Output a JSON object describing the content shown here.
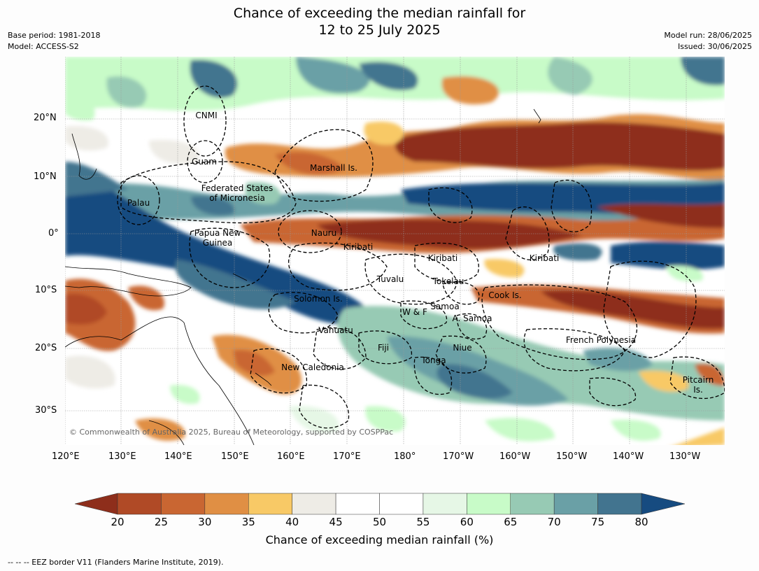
{
  "title": {
    "line1": "Chance of exceeding the median rainfall for",
    "line2": "12 to 25 July 2025"
  },
  "meta": {
    "base_period": "Base period: 1981-2018",
    "model": "Model: ACCESS-S2",
    "model_run": "Model run: 28/06/2025",
    "issued": "Issued: 30/06/2025"
  },
  "axes": {
    "lon_labels": [
      "120°E",
      "130°E",
      "140°E",
      "150°E",
      "160°E",
      "170°E",
      "180°",
      "170°W",
      "160°W",
      "150°W",
      "140°W",
      "130°W"
    ],
    "lat_labels": [
      "20°N",
      "10°N",
      "0°",
      "10°S",
      "20°S",
      "30°S"
    ]
  },
  "regions": {
    "cnmi": "CNMI",
    "guam": "Guam",
    "marshall": "Marshall Is.",
    "fsm1": "Federated States",
    "fsm2": "of Micronesia",
    "palau": "Palau",
    "png1": "Papua New",
    "png2": "Guinea",
    "nauru": "Nauru",
    "kiribati_w": "Kiribati",
    "kiribati_c": "Kiribati",
    "kiribati_e": "Kiribati",
    "tuvalu": "Tuvalu",
    "tokelau": "Tokelau",
    "cook": "Cook Is.",
    "solomon": "Solomon Is.",
    "wf": "W & F",
    "samoa": "Samoa",
    "asamoa": "A. Samoa",
    "vanuatu": "Vanuatu",
    "fiji": "Fiji",
    "niue": "Niue",
    "tonga": "Tonga",
    "frenchpoly": "French Polynesia",
    "newcal": "New Caledonia",
    "pitcairn1": "Pitcairn",
    "pitcairn2": "Is."
  },
  "copyright": "© Commonwealth of Australia 2025, Bureau of Meteorology, supported by COSPPac",
  "legend": {
    "title": "Chance of exceeding median rainfall (%)",
    "ticks": [
      "20",
      "25",
      "30",
      "35",
      "40",
      "45",
      "50",
      "55",
      "60",
      "65",
      "70",
      "75",
      "80"
    ],
    "colors": [
      "#8e2e1b",
      "#b04a26",
      "#c96632",
      "#e08f44",
      "#f8c966",
      "#eeece6",
      "#ffffff",
      "#ffffff",
      "#e6f7e6",
      "#c8fbc8",
      "#97cab4",
      "#6aa0a6",
      "#42748f",
      "#164b80"
    ]
  },
  "footnote": "--  --  -- EEZ border V11 (Flanders Marine Institute, 2019)."
}
